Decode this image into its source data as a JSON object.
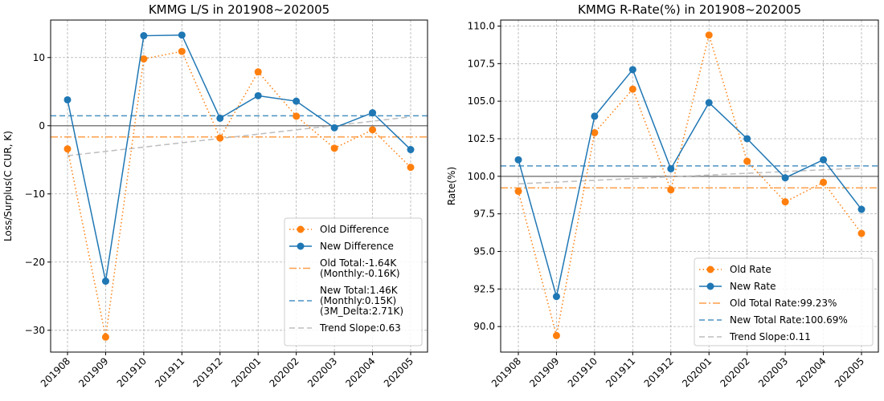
{
  "chart_data": [
    {
      "type": "line",
      "title": "KMMG L/S in 201908~202005",
      "xlabel": "",
      "ylabel": "Loss/Surplus(C CUR, K)",
      "categories": [
        "201908",
        "201909",
        "201910",
        "201911",
        "201912",
        "202001",
        "202002",
        "202003",
        "202004",
        "202005"
      ],
      "ylim": [
        -33.2,
        15.5
      ],
      "yticks": [
        -30,
        -20,
        -10,
        0,
        10
      ],
      "yticklabels": [
        "−30",
        "−20",
        "−10",
        "0",
        "10"
      ],
      "series": [
        {
          "name": "Old Difference",
          "color": "#ff7f0e",
          "style": "dotted",
          "values": [
            -3.4,
            -31.0,
            9.8,
            10.9,
            -1.8,
            7.9,
            1.4,
            -3.3,
            -0.6,
            -6.1
          ]
        },
        {
          "name": "New Difference",
          "color": "#1f77b4",
          "style": "solid",
          "values": [
            3.8,
            -22.8,
            13.2,
            13.3,
            1.1,
            4.4,
            3.6,
            -0.3,
            1.9,
            -3.5
          ]
        }
      ],
      "reference_lines": [
        {
          "name": "zero",
          "value": 0,
          "color": "#808080"
        },
        {
          "name": "old_total",
          "value": -1.64,
          "color": "#ff7f0e"
        },
        {
          "name": "new_total",
          "value": 1.46,
          "color": "#1f77b4"
        }
      ],
      "trend": {
        "start": -4.4,
        "end": 1.3,
        "color": "#bdbdbd"
      },
      "legend": {
        "position": "bottom-right",
        "entries": [
          {
            "key": "old_diff",
            "lines": [
              "Old Difference"
            ]
          },
          {
            "key": "new_diff",
            "lines": [
              "New Difference"
            ]
          },
          {
            "key": "old_total",
            "lines": [
              "Old Total:-1.64K",
              "(Monthly:-0.16K)"
            ]
          },
          {
            "key": "new_total",
            "lines": [
              "New Total:1.46K",
              "(Monthly:0.15K)",
              "(3M_Delta:2.71K)"
            ]
          },
          {
            "key": "trend",
            "lines": [
              "Trend Slope:0.63"
            ]
          }
        ]
      }
    },
    {
      "type": "line",
      "title": "KMMG R-Rate(%) in 201908~202005",
      "xlabel": "",
      "ylabel": "Rate(%)",
      "categories": [
        "201908",
        "201909",
        "201910",
        "201911",
        "201912",
        "202001",
        "202002",
        "202003",
        "202004",
        "202005"
      ],
      "ylim": [
        88.3,
        110.4
      ],
      "yticks": [
        90.0,
        92.5,
        95.0,
        97.5,
        100.0,
        102.5,
        105.0,
        107.5,
        110.0
      ],
      "yticklabels": [
        "90.0",
        "92.5",
        "95.0",
        "97.5",
        "100.0",
        "102.5",
        "105.0",
        "107.5",
        "110.0"
      ],
      "series": [
        {
          "name": "Old Rate",
          "color": "#ff7f0e",
          "style": "dotted",
          "values": [
            99.0,
            89.4,
            102.9,
            105.8,
            99.1,
            109.4,
            101.0,
            98.3,
            99.6,
            96.2
          ]
        },
        {
          "name": "New Rate",
          "color": "#1f77b4",
          "style": "solid",
          "values": [
            101.1,
            92.0,
            104.0,
            107.1,
            100.5,
            104.9,
            102.5,
            99.9,
            101.1,
            97.8
          ]
        }
      ],
      "reference_lines": [
        {
          "name": "hundred",
          "value": 100.0,
          "color": "#808080"
        },
        {
          "name": "old_total",
          "value": 99.23,
          "color": "#ff7f0e"
        },
        {
          "name": "new_total",
          "value": 100.69,
          "color": "#1f77b4"
        }
      ],
      "trend": {
        "start": 99.5,
        "end": 100.55,
        "color": "#bdbdbd"
      },
      "legend": {
        "position": "bottom-right",
        "entries": [
          {
            "key": "old_diff",
            "lines": [
              "Old Rate"
            ]
          },
          {
            "key": "new_diff",
            "lines": [
              "New Rate"
            ]
          },
          {
            "key": "old_total",
            "lines": [
              "Old Total Rate:99.23%"
            ]
          },
          {
            "key": "new_total",
            "lines": [
              "New Total Rate:100.69%"
            ]
          },
          {
            "key": "trend",
            "lines": [
              "Trend Slope:0.11"
            ]
          }
        ]
      }
    }
  ]
}
